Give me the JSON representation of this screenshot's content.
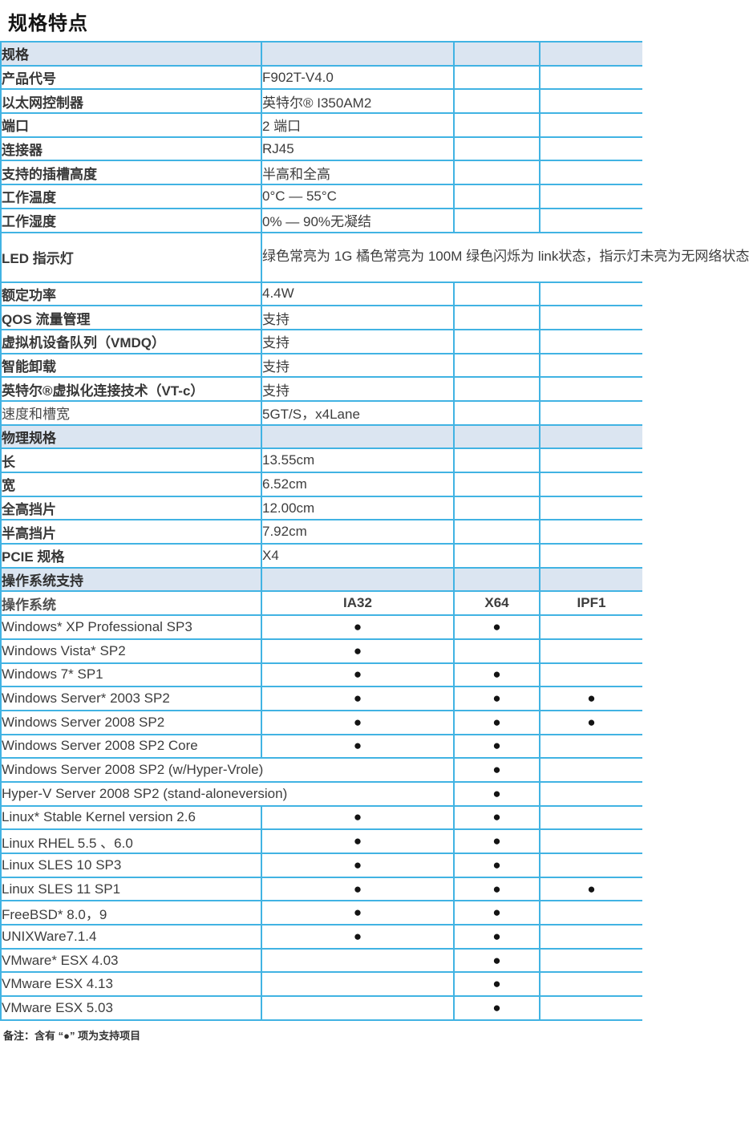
{
  "page": {
    "title": "规格特点",
    "footer_note": "备注：含有 “●” 项为支持项目"
  },
  "colors": {
    "border": "#41b3e3",
    "section_bg": "#dbe5f1",
    "text": "#3a3a3a"
  },
  "table": {
    "bullet": "●",
    "rows": [
      {
        "type": "section",
        "label": "规格"
      },
      {
        "type": "kv",
        "label": "产品代号",
        "value": "F902T-V4.0"
      },
      {
        "type": "kv",
        "label": "以太网控制器",
        "value": "英特尔® I350AM2"
      },
      {
        "type": "kv",
        "label": "端口",
        "value": "2 端口"
      },
      {
        "type": "kv",
        "label": "连接器",
        "value": "RJ45"
      },
      {
        "type": "kv",
        "label": "支持的插槽高度",
        "value": "半高和全高"
      },
      {
        "type": "kv",
        "label": "工作温度",
        "value": "0°C — 55°C"
      },
      {
        "type": "kv",
        "label": "工作湿度",
        "value": "0% — 90%无凝结"
      },
      {
        "type": "kv_span",
        "label": "LED 指示灯",
        "value": "绿色常亮为 1G  橘色常亮为 100M  绿色闪烁为 link状态，指示灯未亮为无网络状态"
      },
      {
        "type": "kv",
        "label": "额定功率",
        "value": "4.4W"
      },
      {
        "type": "kv",
        "label": "QOS 流量管理",
        "value": "支持"
      },
      {
        "type": "kv",
        "label": "虚拟机设备队列（VMDQ）",
        "value": "支持"
      },
      {
        "type": "kv",
        "label": "智能卸载",
        "value": "支持"
      },
      {
        "type": "kv",
        "label": "英特尔®虚拟化连接技术（VT-c）",
        "value": "支持"
      },
      {
        "type": "kv",
        "label": "速度和槽宽",
        "value": "5GT/S，x4Lane",
        "light": true
      },
      {
        "type": "section",
        "label": "物理规格"
      },
      {
        "type": "kv",
        "label": "长",
        "value": "13.55cm"
      },
      {
        "type": "kv",
        "label": "宽",
        "value": "6.52cm"
      },
      {
        "type": "kv",
        "label": "全高挡片",
        "value": "12.00cm"
      },
      {
        "type": "kv",
        "label": "半高挡片",
        "value": "7.92cm"
      },
      {
        "type": "kv",
        "label": "PCIE 规格",
        "value": "X4"
      },
      {
        "type": "section",
        "label": "操作系统支持"
      },
      {
        "type": "os_header",
        "label": "操作系统",
        "cols": [
          "IA32",
          "X64",
          "IPF1"
        ]
      },
      {
        "type": "os",
        "label": "Windows* XP Professional SP3",
        "support": [
          true,
          true,
          false
        ]
      },
      {
        "type": "os",
        "label": "Windows Vista* SP2",
        "support": [
          true,
          false,
          false
        ]
      },
      {
        "type": "os",
        "label": "Windows 7* SP1",
        "support": [
          true,
          true,
          false
        ]
      },
      {
        "type": "os",
        "label": "Windows Server* 2003 SP2",
        "support": [
          true,
          true,
          true
        ]
      },
      {
        "type": "os",
        "label": "Windows Server 2008 SP2",
        "support": [
          true,
          true,
          true
        ]
      },
      {
        "type": "os",
        "label": "Windows Server 2008 SP2 Core",
        "support": [
          true,
          true,
          false
        ]
      },
      {
        "type": "os_wide",
        "label": "Windows Server 2008 SP2 (w/Hyper-Vrole)",
        "support": [
          true,
          false
        ]
      },
      {
        "type": "os_wide",
        "label": "Hyper-V Server 2008 SP2 (stand-aloneversion)",
        "support": [
          true,
          false
        ]
      },
      {
        "type": "os",
        "label": "Linux* Stable Kernel version 2.6",
        "support": [
          true,
          true,
          false
        ]
      },
      {
        "type": "os",
        "label": "Linux RHEL 5.5 、6.0",
        "support": [
          true,
          true,
          false
        ]
      },
      {
        "type": "os",
        "label": "Linux SLES 10 SP3",
        "support": [
          true,
          true,
          false
        ]
      },
      {
        "type": "os",
        "label": "Linux SLES 11 SP1",
        "support": [
          true,
          true,
          true
        ]
      },
      {
        "type": "os",
        "label": "FreeBSD* 8.0，9",
        "support": [
          true,
          true,
          false
        ]
      },
      {
        "type": "os",
        "label": "UNIXWare7.1.4",
        "support": [
          true,
          true,
          false
        ]
      },
      {
        "type": "os",
        "label": "VMware* ESX 4.03",
        "support": [
          false,
          true,
          false
        ]
      },
      {
        "type": "os",
        "label": "VMware ESX 4.13",
        "support": [
          false,
          true,
          false
        ]
      },
      {
        "type": "os",
        "label": "VMware ESX 5.03",
        "support": [
          false,
          true,
          false
        ]
      }
    ]
  }
}
